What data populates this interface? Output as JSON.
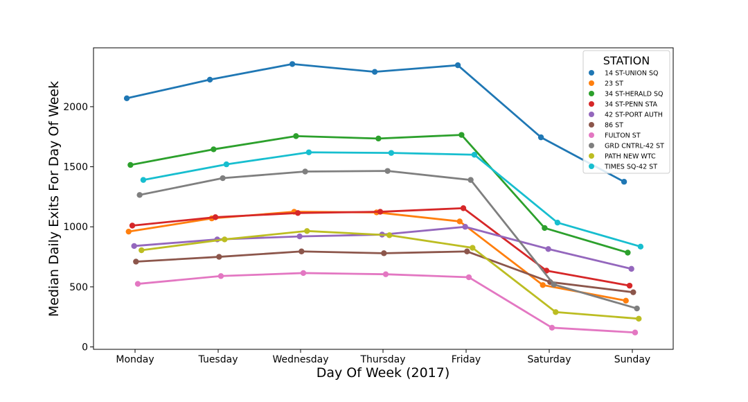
{
  "chart_data": {
    "type": "line",
    "title": "",
    "xlabel": "Day Of Week (2017)",
    "ylabel": "Median Daily Exits For Day Of Week",
    "categories": [
      "Monday",
      "Tuesday",
      "Wednesday",
      "Thursday",
      "Friday",
      "Saturday",
      "Sunday"
    ],
    "ylim": [
      -20,
      2490
    ],
    "yticks": [
      0,
      500,
      1000,
      1500,
      2000
    ],
    "grid": false,
    "legend": {
      "title": "STATION",
      "placement": "top-right"
    },
    "series": [
      {
        "name": "14 ST-UNION SQ",
        "color": "#1f77b4",
        "values": [
          2070,
          2225,
          2355,
          2290,
          2345,
          1745,
          1375
        ]
      },
      {
        "name": "23 ST",
        "color": "#ff7f0e",
        "values": [
          960,
          1070,
          1125,
          1120,
          1045,
          515,
          385
        ]
      },
      {
        "name": "34 ST-HERALD SQ",
        "color": "#2ca02c",
        "values": [
          1515,
          1645,
          1755,
          1735,
          1765,
          990,
          785
        ]
      },
      {
        "name": "34 ST-PENN STA",
        "color": "#d62728",
        "values": [
          1010,
          1080,
          1115,
          1125,
          1155,
          635,
          510
        ]
      },
      {
        "name": "42 ST-PORT AUTH",
        "color": "#9467bd",
        "values": [
          840,
          895,
          920,
          935,
          1000,
          815,
          650
        ]
      },
      {
        "name": "86 ST",
        "color": "#8c564b",
        "values": [
          710,
          750,
          795,
          780,
          795,
          540,
          455
        ]
      },
      {
        "name": "FULTON ST",
        "color": "#e377c2",
        "values": [
          525,
          590,
          615,
          605,
          580,
          160,
          120
        ]
      },
      {
        "name": "GRD CNTRL-42 ST",
        "color": "#7f7f7f",
        "values": [
          1265,
          1405,
          1460,
          1465,
          1390,
          520,
          320
        ]
      },
      {
        "name": "PATH NEW WTC",
        "color": "#bcbd22",
        "values": [
          805,
          895,
          965,
          930,
          825,
          290,
          235
        ]
      },
      {
        "name": "TIMES SQ-42 ST",
        "color": "#17becf",
        "values": [
          1390,
          1520,
          1620,
          1615,
          1600,
          1035,
          835
        ]
      }
    ]
  }
}
